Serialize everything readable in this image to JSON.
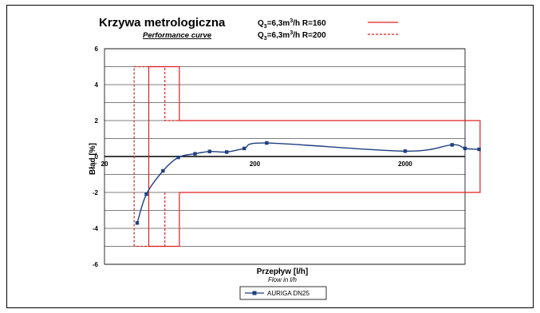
{
  "chart_data": {
    "type": "line",
    "title": "Krzywa metrologiczna",
    "subtitle": "Performance curve",
    "xlabel": "Przepływ [l/h]",
    "xlabel_sub": "Flow in l/h",
    "ylabel": "Błąd [%]",
    "xscale": "log",
    "xlim": [
      20,
      5000
    ],
    "ylim": [
      -6,
      6
    ],
    "x_ticks": [
      20,
      200,
      2000
    ],
    "x_tick_labels": [
      "20",
      "200",
      "2000"
    ],
    "y_ticks": [
      6,
      4,
      2,
      0,
      -2,
      -4,
      -6
    ],
    "y_tick_labels": [
      "6",
      "4",
      "2",
      "0",
      "-2",
      "-4",
      "-6"
    ],
    "grid": true,
    "limit_legend": [
      {
        "label_main": "Q",
        "label_sub": "3",
        "label_rest": "=6,3m",
        "label_sup": "3",
        "label_tail": "/h R=160",
        "style": "solid",
        "color": "#e02020"
      },
      {
        "label_main": "Q",
        "label_sub": "3",
        "label_rest": "=6,3m",
        "label_sup": "3",
        "label_tail": "/h R=200",
        "style": "dashed",
        "color": "#e02020"
      }
    ],
    "limits": [
      {
        "style": "solid",
        "color": "#e02020",
        "points": [
          [
            39.4,
            -5
          ],
          [
            39.4,
            5
          ],
          [
            63,
            5
          ],
          [
            63,
            2
          ],
          [
            6300,
            2
          ],
          [
            6300,
            -2
          ],
          [
            63,
            -2
          ],
          [
            63,
            -5
          ],
          [
            39.4,
            -5
          ]
        ]
      },
      {
        "style": "dashed",
        "color": "#e02020",
        "points": [
          [
            31.5,
            -5
          ],
          [
            31.5,
            5
          ],
          [
            50.4,
            5
          ],
          [
            50.4,
            2
          ],
          [
            63,
            2
          ]
        ]
      },
      {
        "style": "dashed",
        "color": "#e02020",
        "points": [
          [
            50.4,
            -2
          ],
          [
            50.4,
            -5
          ],
          [
            31.5,
            -5
          ]
        ]
      }
    ],
    "series": [
      {
        "name": "AURIGA DN25",
        "color": "#1f3f7f",
        "x": [
          33,
          38,
          49,
          62,
          80,
          100,
          130,
          170,
          240,
          2000,
          4100,
          5000,
          6200
        ],
        "y": [
          -3.7,
          -2.1,
          -0.8,
          -0.05,
          0.15,
          0.28,
          0.25,
          0.45,
          0.75,
          0.3,
          0.65,
          0.45,
          0.4
        ]
      }
    ]
  }
}
